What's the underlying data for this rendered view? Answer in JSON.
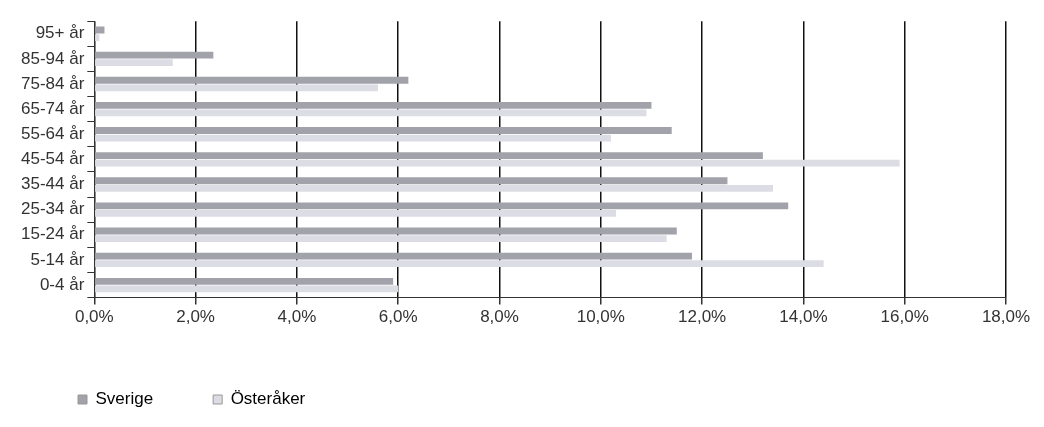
{
  "chart_data": {
    "type": "bar",
    "orientation": "horizontal",
    "categories": [
      "95+ år",
      "85-94 år",
      "75-84 år",
      "65-74 år",
      "55-64 år",
      "45-54 år",
      "35-44 år",
      "25-34 år",
      "15-24 år",
      "5-14 år",
      "0-4 år"
    ],
    "series": [
      {
        "name": "Sverige",
        "color": "#a2a2aa",
        "values": [
          0.2,
          2.35,
          6.2,
          11.0,
          11.4,
          13.2,
          12.5,
          13.7,
          11.5,
          11.8,
          5.9
        ]
      },
      {
        "name": "Österåker",
        "color": "#dcdce4",
        "values": [
          0.1,
          1.55,
          5.6,
          10.9,
          10.2,
          15.9,
          13.4,
          10.3,
          11.3,
          14.4,
          6.0
        ]
      }
    ],
    "xlim": [
      0,
      18
    ],
    "xticks": [
      {
        "value": 0,
        "label": "0,0%"
      },
      {
        "value": 2,
        "label": "2,0%"
      },
      {
        "value": 4,
        "label": "4,0%"
      },
      {
        "value": 6,
        "label": "6,0%"
      },
      {
        "value": 8,
        "label": "8,0%"
      },
      {
        "value": 10,
        "label": "10,0%"
      },
      {
        "value": 12,
        "label": "12,0%"
      },
      {
        "value": 14,
        "label": "14,0%"
      },
      {
        "value": 16,
        "label": "16,0%"
      },
      {
        "value": 18,
        "label": "18,0%"
      }
    ],
    "grid": "x",
    "legend": "bottom left"
  }
}
